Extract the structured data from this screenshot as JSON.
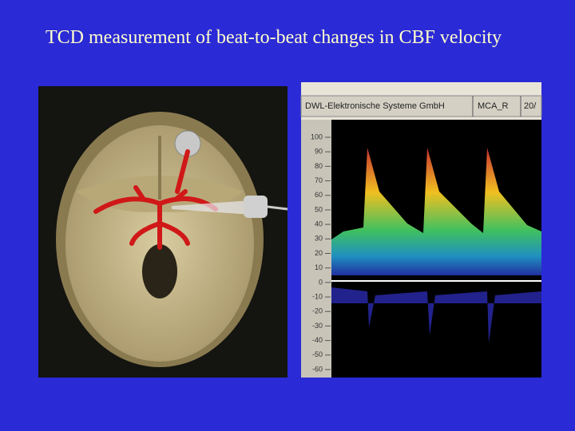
{
  "title": "TCD measurement of beat-to-beat changes in CBF velocity",
  "doppler": {
    "header": [
      "DWL-Elektronische Systeme GmbH",
      "MCA_R",
      "20/"
    ],
    "axis_labels": [
      100,
      90,
      80,
      70,
      60,
      50,
      40,
      30,
      20,
      10,
      0,
      -10,
      -20,
      -30,
      -40,
      -50,
      -60
    ]
  }
}
